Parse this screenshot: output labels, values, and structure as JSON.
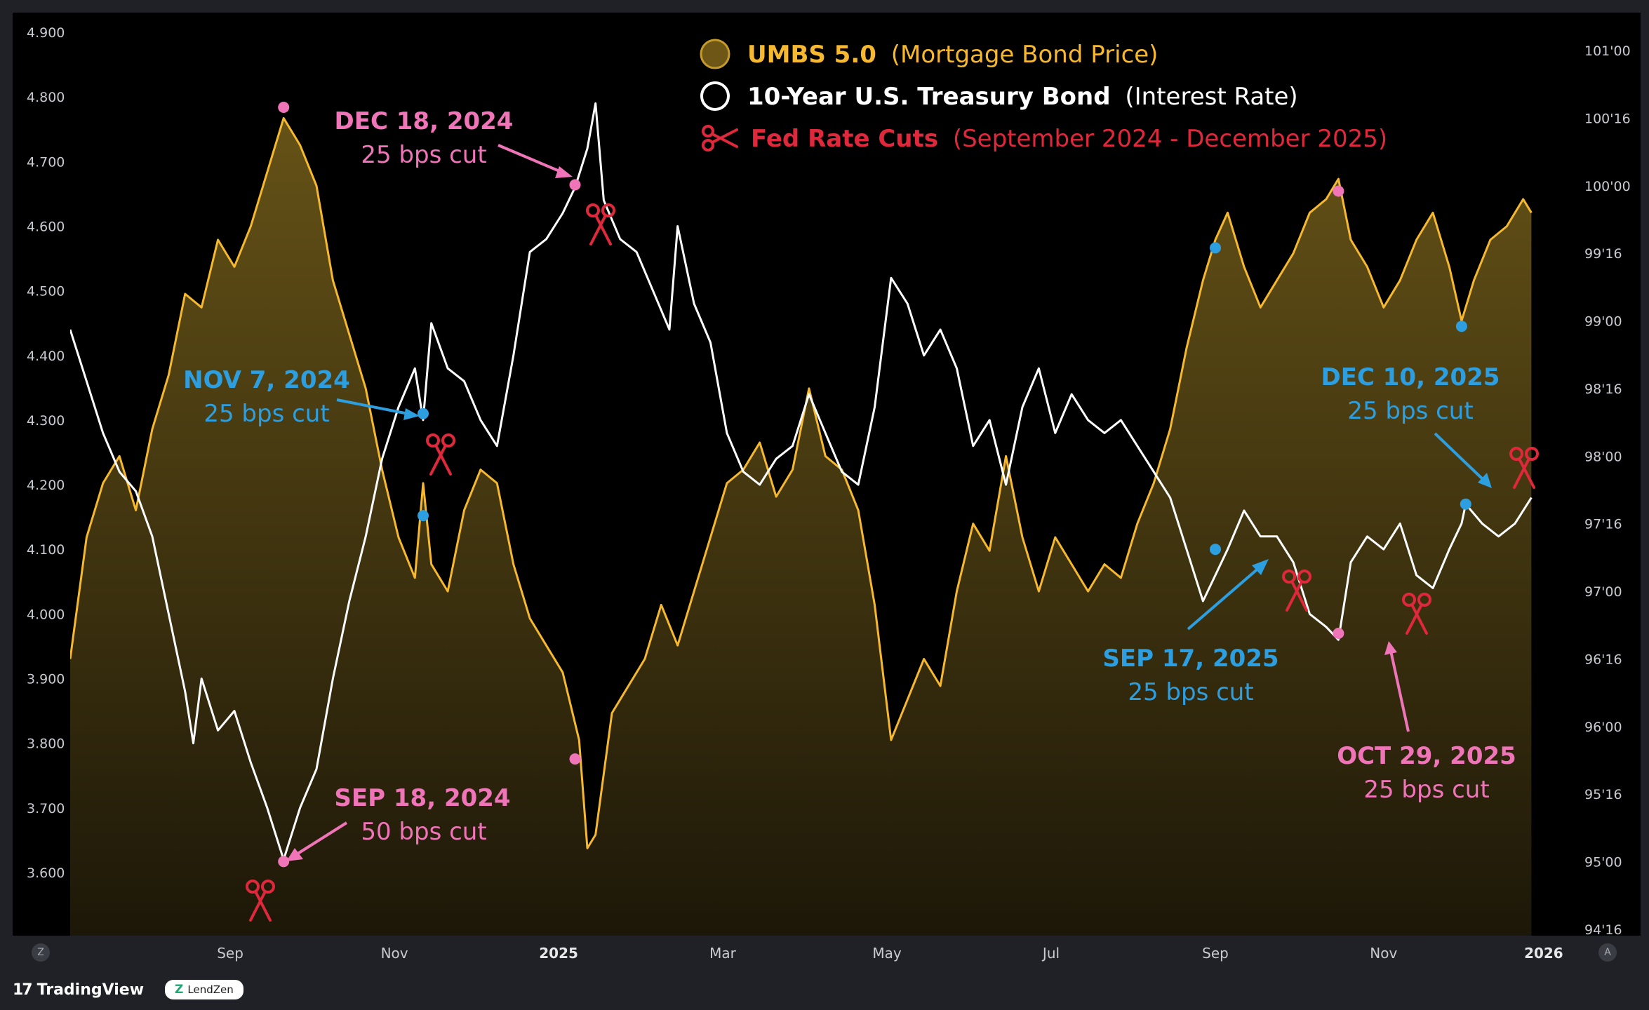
{
  "footer": {
    "tradingview_label": "TradingView",
    "lendzen_label": "LendZen"
  },
  "controls": {
    "left_button": "Z",
    "right_button": "A"
  },
  "colors": {
    "background": "#000000",
    "frame": "#1f2126",
    "umbs": "#f5b82e",
    "treasury": "#ffffff",
    "cuts": "#e0283c",
    "pink": "#f075b8",
    "blue": "#2d9fe0"
  },
  "chart_data": {
    "type": "line",
    "title": "",
    "legend": [
      {
        "bold": "UMBS 5.0",
        "rest": "(Mortgage Bond Price)",
        "icon": "filled-circle-icon",
        "color": "#f5b82e"
      },
      {
        "bold": "10-Year U.S. Treasury Bond",
        "rest": "(Interest Rate)",
        "icon": "hollow-circle-icon",
        "color": "#ffffff"
      },
      {
        "bold": "Fed Rate Cuts",
        "rest": "(September 2024 - December 2025)",
        "icon": "scissors-icon",
        "color": "#e0283c"
      }
    ],
    "x_ticks": [
      {
        "label": "Sep",
        "t": 1.55,
        "bold": false
      },
      {
        "label": "Nov",
        "t": 3.55,
        "bold": false
      },
      {
        "label": "2025",
        "t": 5.55,
        "bold": true
      },
      {
        "label": "Mar",
        "t": 7.55,
        "bold": false
      },
      {
        "label": "May",
        "t": 9.55,
        "bold": false
      },
      {
        "label": "Jul",
        "t": 11.55,
        "bold": false
      },
      {
        "label": "Sep",
        "t": 13.55,
        "bold": false
      },
      {
        "label": "Nov",
        "t": 15.6,
        "bold": false
      },
      {
        "label": "2026",
        "t": 17.55,
        "bold": true
      }
    ],
    "x_range": [
      -0.4,
      17.85
    ],
    "left_axis": {
      "ticks": [
        "4.900",
        "4.800",
        "4.700",
        "4.600",
        "4.500",
        "4.400",
        "4.300",
        "4.200",
        "4.100",
        "4.000",
        "3.900",
        "3.800",
        "3.700",
        "3.600"
      ],
      "range": [
        3.52,
        4.92
      ]
    },
    "right_axis": {
      "ticks": [
        "101'00",
        "100'16",
        "100'00",
        "99'16",
        "99'00",
        "98'16",
        "98'00",
        "97'16",
        "97'00",
        "96'16",
        "96'00",
        "95'16",
        "95'00",
        "94'16"
      ],
      "range": [
        94.5,
        101.0
      ]
    },
    "series": [
      {
        "name": "10-Year U.S. Treasury Bond",
        "axis": "left",
        "color": "#ffffff",
        "points": [
          [
            -0.4,
            4.44
          ],
          [
            -0.2,
            4.36
          ],
          [
            0.0,
            4.28
          ],
          [
            0.2,
            4.22
          ],
          [
            0.4,
            4.19
          ],
          [
            0.6,
            4.12
          ],
          [
            0.8,
            4.0
          ],
          [
            1.0,
            3.88
          ],
          [
            1.1,
            3.8
          ],
          [
            1.2,
            3.9
          ],
          [
            1.4,
            3.82
          ],
          [
            1.6,
            3.85
          ],
          [
            1.8,
            3.77
          ],
          [
            2.0,
            3.7
          ],
          [
            2.15,
            3.64
          ],
          [
            2.2,
            3.62
          ],
          [
            2.4,
            3.7
          ],
          [
            2.6,
            3.76
          ],
          [
            2.8,
            3.9
          ],
          [
            3.0,
            4.02
          ],
          [
            3.2,
            4.12
          ],
          [
            3.4,
            4.24
          ],
          [
            3.6,
            4.32
          ],
          [
            3.8,
            4.38
          ],
          [
            3.9,
            4.3
          ],
          [
            4.0,
            4.45
          ],
          [
            4.2,
            4.38
          ],
          [
            4.4,
            4.36
          ],
          [
            4.6,
            4.3
          ],
          [
            4.8,
            4.26
          ],
          [
            5.0,
            4.4
          ],
          [
            5.2,
            4.56
          ],
          [
            5.4,
            4.58
          ],
          [
            5.6,
            4.62
          ],
          [
            5.75,
            4.66
          ],
          [
            5.9,
            4.72
          ],
          [
            6.0,
            4.79
          ],
          [
            6.1,
            4.64
          ],
          [
            6.3,
            4.58
          ],
          [
            6.5,
            4.56
          ],
          [
            6.7,
            4.5
          ],
          [
            6.9,
            4.44
          ],
          [
            7.0,
            4.6
          ],
          [
            7.2,
            4.48
          ],
          [
            7.4,
            4.42
          ],
          [
            7.6,
            4.28
          ],
          [
            7.8,
            4.22
          ],
          [
            8.0,
            4.2
          ],
          [
            8.2,
            4.24
          ],
          [
            8.4,
            4.26
          ],
          [
            8.6,
            4.34
          ],
          [
            8.8,
            4.28
          ],
          [
            9.0,
            4.22
          ],
          [
            9.2,
            4.2
          ],
          [
            9.4,
            4.32
          ],
          [
            9.6,
            4.52
          ],
          [
            9.8,
            4.48
          ],
          [
            10.0,
            4.4
          ],
          [
            10.2,
            4.44
          ],
          [
            10.4,
            4.38
          ],
          [
            10.6,
            4.26
          ],
          [
            10.8,
            4.3
          ],
          [
            11.0,
            4.2
          ],
          [
            11.2,
            4.32
          ],
          [
            11.4,
            4.38
          ],
          [
            11.6,
            4.28
          ],
          [
            11.8,
            4.34
          ],
          [
            12.0,
            4.3
          ],
          [
            12.2,
            4.28
          ],
          [
            12.4,
            4.3
          ],
          [
            12.6,
            4.26
          ],
          [
            12.8,
            4.22
          ],
          [
            13.0,
            4.18
          ],
          [
            13.2,
            4.1
          ],
          [
            13.4,
            4.02
          ],
          [
            13.55,
            4.06
          ],
          [
            13.7,
            4.1
          ],
          [
            13.9,
            4.16
          ],
          [
            14.1,
            4.12
          ],
          [
            14.3,
            4.12
          ],
          [
            14.5,
            4.08
          ],
          [
            14.7,
            4.0
          ],
          [
            14.9,
            3.98
          ],
          [
            15.05,
            3.96
          ],
          [
            15.2,
            4.08
          ],
          [
            15.4,
            4.12
          ],
          [
            15.6,
            4.1
          ],
          [
            15.8,
            4.14
          ],
          [
            16.0,
            4.06
          ],
          [
            16.2,
            4.04
          ],
          [
            16.4,
            4.1
          ],
          [
            16.55,
            4.14
          ],
          [
            16.6,
            4.17
          ],
          [
            16.8,
            4.14
          ],
          [
            17.0,
            4.12
          ],
          [
            17.2,
            4.14
          ],
          [
            17.4,
            4.18
          ]
        ]
      },
      {
        "name": "UMBS 5.0",
        "axis": "right",
        "color": "#f5b82e",
        "points": [
          [
            -0.4,
            96.5
          ],
          [
            -0.2,
            97.4
          ],
          [
            0.0,
            97.8
          ],
          [
            0.2,
            98.0
          ],
          [
            0.4,
            97.6
          ],
          [
            0.6,
            98.2
          ],
          [
            0.8,
            98.6
          ],
          [
            1.0,
            99.2
          ],
          [
            1.2,
            99.1
          ],
          [
            1.4,
            99.6
          ],
          [
            1.6,
            99.4
          ],
          [
            1.8,
            99.7
          ],
          [
            2.0,
            100.1
          ],
          [
            2.2,
            100.5
          ],
          [
            2.4,
            100.3
          ],
          [
            2.6,
            100.0
          ],
          [
            2.8,
            99.3
          ],
          [
            3.0,
            98.9
          ],
          [
            3.2,
            98.5
          ],
          [
            3.4,
            97.9
          ],
          [
            3.6,
            97.4
          ],
          [
            3.8,
            97.1
          ],
          [
            3.9,
            97.8
          ],
          [
            4.0,
            97.2
          ],
          [
            4.2,
            97.0
          ],
          [
            4.4,
            97.6
          ],
          [
            4.6,
            97.9
          ],
          [
            4.8,
            97.8
          ],
          [
            5.0,
            97.2
          ],
          [
            5.2,
            96.8
          ],
          [
            5.4,
            96.6
          ],
          [
            5.6,
            96.4
          ],
          [
            5.8,
            95.9
          ],
          [
            5.9,
            95.1
          ],
          [
            6.0,
            95.2
          ],
          [
            6.2,
            96.1
          ],
          [
            6.4,
            96.3
          ],
          [
            6.6,
            96.5
          ],
          [
            6.8,
            96.9
          ],
          [
            7.0,
            96.6
          ],
          [
            7.2,
            97.0
          ],
          [
            7.4,
            97.4
          ],
          [
            7.6,
            97.8
          ],
          [
            7.8,
            97.9
          ],
          [
            8.0,
            98.1
          ],
          [
            8.2,
            97.7
          ],
          [
            8.4,
            97.9
          ],
          [
            8.6,
            98.5
          ],
          [
            8.8,
            98.0
          ],
          [
            9.0,
            97.9
          ],
          [
            9.2,
            97.6
          ],
          [
            9.4,
            96.9
          ],
          [
            9.6,
            95.9
          ],
          [
            9.8,
            96.2
          ],
          [
            10.0,
            96.5
          ],
          [
            10.2,
            96.3
          ],
          [
            10.4,
            97.0
          ],
          [
            10.6,
            97.5
          ],
          [
            10.8,
            97.3
          ],
          [
            11.0,
            98.0
          ],
          [
            11.2,
            97.4
          ],
          [
            11.4,
            97.0
          ],
          [
            11.6,
            97.4
          ],
          [
            11.8,
            97.2
          ],
          [
            12.0,
            97.0
          ],
          [
            12.2,
            97.2
          ],
          [
            12.4,
            97.1
          ],
          [
            12.6,
            97.5
          ],
          [
            12.8,
            97.8
          ],
          [
            13.0,
            98.2
          ],
          [
            13.2,
            98.8
          ],
          [
            13.4,
            99.3
          ],
          [
            13.55,
            99.6
          ],
          [
            13.7,
            99.8
          ],
          [
            13.9,
            99.4
          ],
          [
            14.1,
            99.1
          ],
          [
            14.3,
            99.3
          ],
          [
            14.5,
            99.5
          ],
          [
            14.7,
            99.8
          ],
          [
            14.9,
            99.9
          ],
          [
            15.05,
            100.05
          ],
          [
            15.2,
            99.6
          ],
          [
            15.4,
            99.4
          ],
          [
            15.6,
            99.1
          ],
          [
            15.8,
            99.3
          ],
          [
            16.0,
            99.6
          ],
          [
            16.2,
            99.8
          ],
          [
            16.4,
            99.4
          ],
          [
            16.55,
            99.0
          ],
          [
            16.7,
            99.3
          ],
          [
            16.9,
            99.6
          ],
          [
            17.1,
            99.7
          ],
          [
            17.3,
            99.9
          ],
          [
            17.4,
            99.8
          ]
        ]
      }
    ],
    "markers": [
      {
        "series": "treasury",
        "t": 2.2,
        "v": 3.617,
        "color": "#f075b8"
      },
      {
        "series": "treasury",
        "t": 3.9,
        "v": 4.31,
        "color": "#2d9fe0"
      },
      {
        "series": "treasury",
        "t": 5.75,
        "v": 4.664,
        "color": "#f075b8"
      },
      {
        "series": "treasury",
        "t": 13.55,
        "v": 4.1,
        "color": "#2d9fe0"
      },
      {
        "series": "treasury",
        "t": 15.05,
        "v": 3.97,
        "color": "#f075b8"
      },
      {
        "series": "treasury",
        "t": 16.6,
        "v": 4.17,
        "color": "#2d9fe0"
      },
      {
        "series": "umbs",
        "t": 2.2,
        "v": 100.58,
        "color": "#f075b8"
      },
      {
        "series": "umbs",
        "t": 3.9,
        "v": 97.56,
        "color": "#2d9fe0"
      },
      {
        "series": "umbs",
        "t": 5.75,
        "v": 95.76,
        "color": "#f075b8"
      },
      {
        "series": "umbs",
        "t": 13.55,
        "v": 99.54,
        "color": "#2d9fe0"
      },
      {
        "series": "umbs",
        "t": 15.05,
        "v": 99.96,
        "color": "#f075b8"
      },
      {
        "series": "umbs",
        "t": 16.55,
        "v": 98.96,
        "color": "#2d9fe0"
      }
    ],
    "annotations": [
      {
        "date": "SEP 18, 2024",
        "sub": "50 bps cut",
        "color": "#f075b8"
      },
      {
        "date": "NOV 7, 2024",
        "sub": "25 bps cut",
        "color": "#2d9fe0"
      },
      {
        "date": "DEC 18, 2024",
        "sub": "25 bps cut",
        "color": "#f075b8"
      },
      {
        "date": "SEP 17, 2025",
        "sub": "25 bps cut",
        "color": "#2d9fe0"
      },
      {
        "date": "OCT 29, 2025",
        "sub": "25 bps cut",
        "color": "#f075b8"
      },
      {
        "date": "DEC 10, 2025",
        "sub": "25 bps cut",
        "color": "#2d9fe0"
      }
    ]
  }
}
